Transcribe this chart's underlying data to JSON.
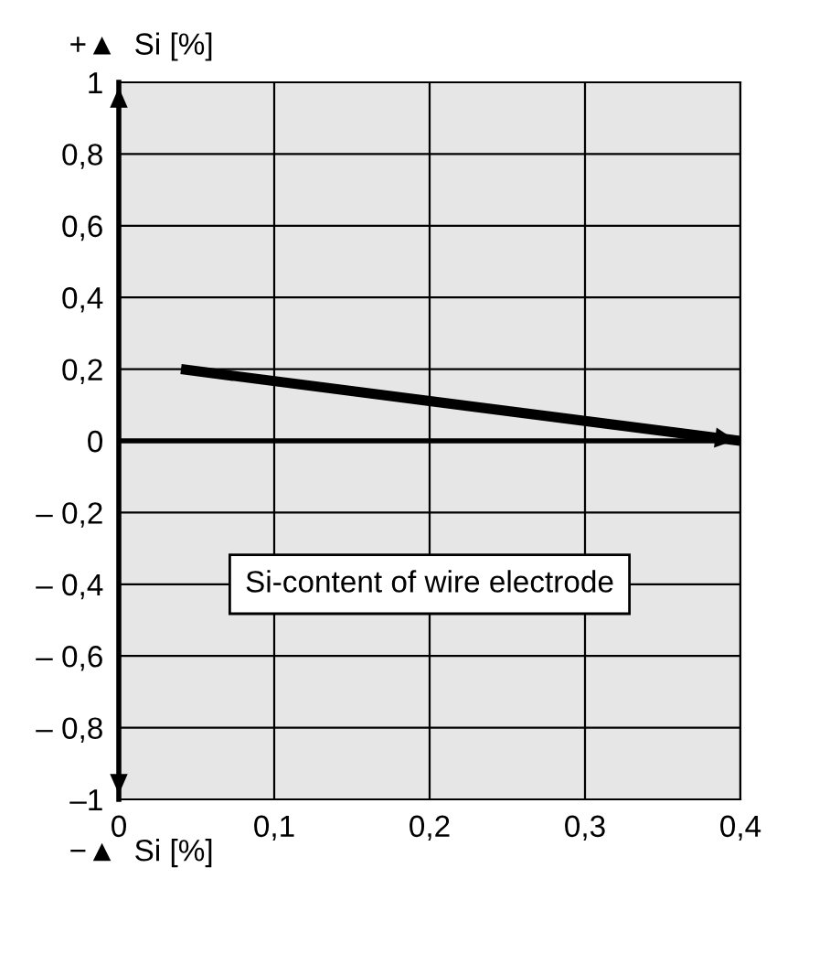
{
  "chart_data": {
    "type": "line",
    "ylabel": "+▲  Si [%]",
    "annotations": [
      {
        "text": "Si-content of wire electrode"
      },
      {
        "text": "−▲  Si [%]"
      }
    ],
    "x": [
      0.04,
      0.4
    ],
    "series": [
      {
        "color": "#000000",
        "values": [
          0.2,
          0
        ]
      }
    ],
    "xlim": [
      0,
      0.4
    ],
    "ylim": [
      -1,
      1
    ],
    "xticks": [
      0,
      {
        "value": 0.1,
        "label": "0,1"
      },
      {
        "value": 0.2,
        "label": "0,2"
      },
      {
        "value": 0.3,
        "label": "0,3"
      },
      {
        "value": 0.4,
        "label": "0,4"
      }
    ],
    "yticks": [
      {
        "value": -1,
        "label": "–1"
      },
      {
        "value": -0.8,
        "label": "– 0,8"
      },
      {
        "value": -0.6,
        "label": "– 0,6"
      },
      {
        "value": -0.4,
        "label": "– 0,4"
      },
      {
        "value": -0.2,
        "label": "– 0,2"
      },
      0,
      {
        "value": 0.2,
        "label": "0,2"
      },
      {
        "value": 0.4,
        "label": "0,4"
      },
      {
        "value": 0.6,
        "label": "0,6"
      },
      {
        "value": 0.8,
        "label": "0,8"
      },
      1
    ],
    "ref_lines": [
      {
        "axis": "y",
        "value": 0,
        "color": "#000000"
      }
    ],
    "grid": true,
    "legend": false,
    "marker": "none",
    "line_style": "solid"
  }
}
